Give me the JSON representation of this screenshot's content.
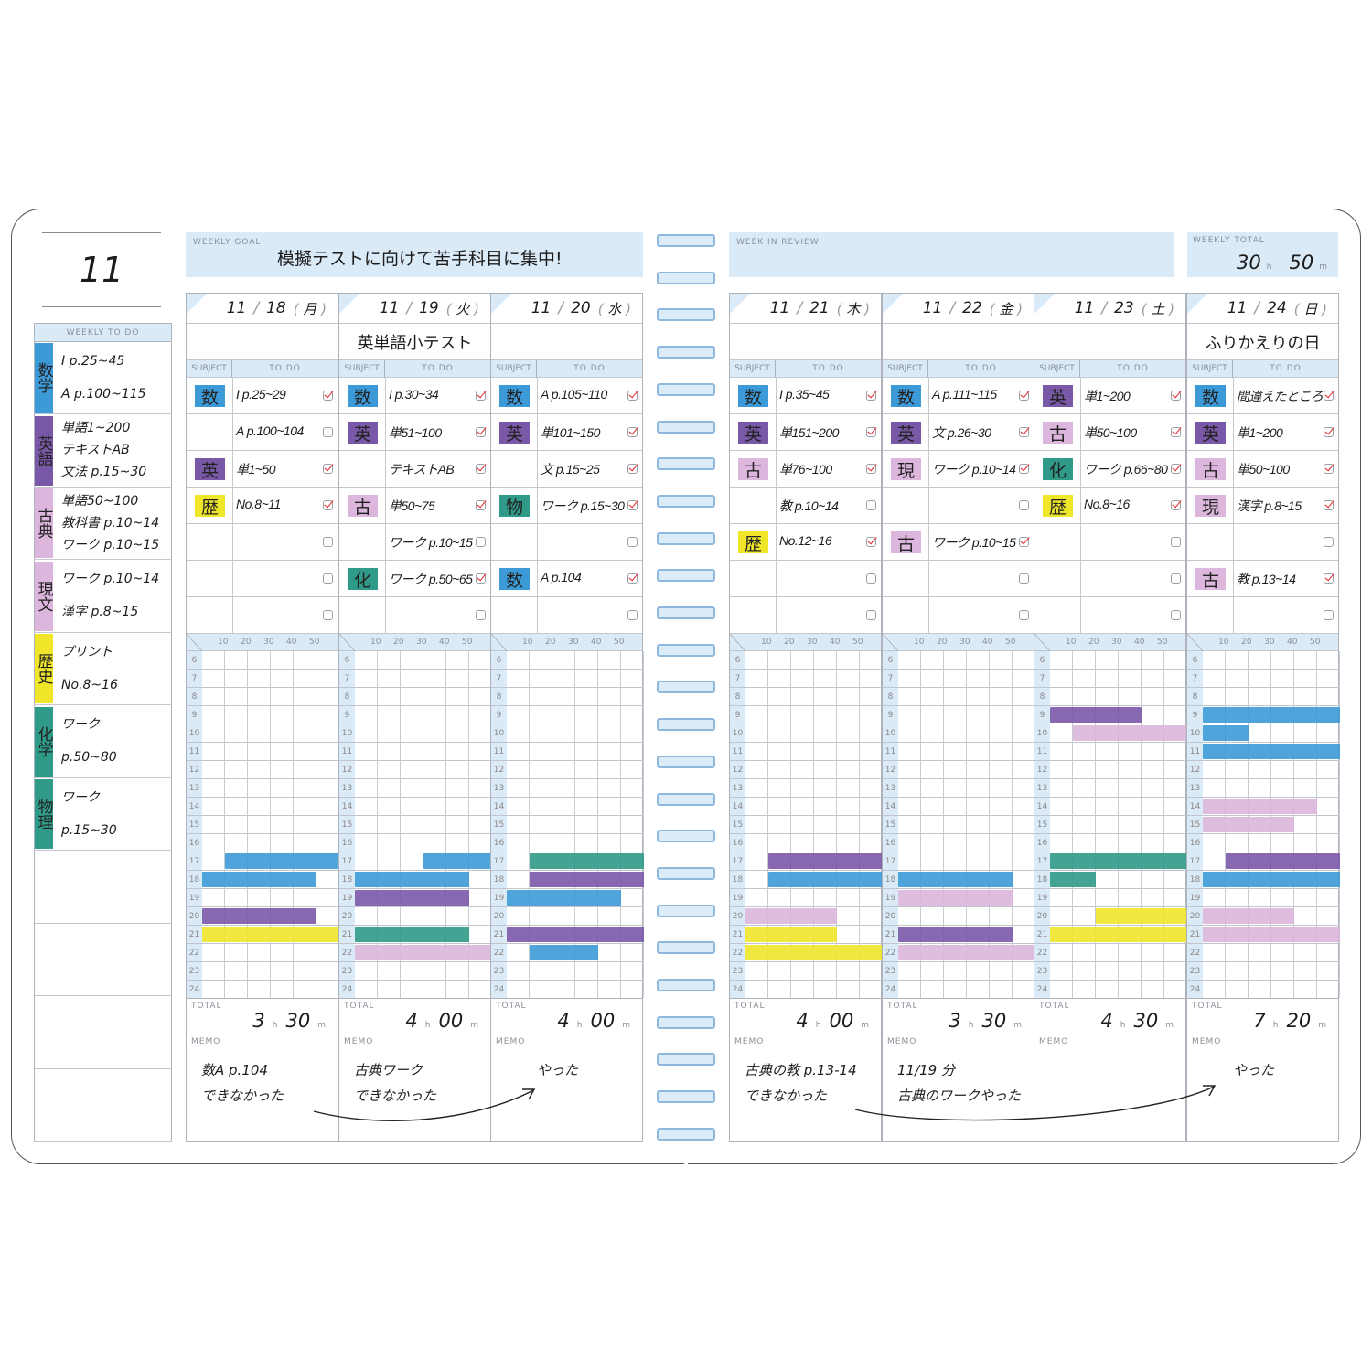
{
  "colors": {
    "blue": "#3d9ad8",
    "purple": "#7a58a8",
    "pink": "#dcb6dc",
    "yellow": "#efe62a",
    "teal": "#2f9a88",
    "header": "#dbeaf7",
    "check": "#e0202a"
  },
  "subject_colors": {
    "数": "blue",
    "英": "purple",
    "古": "pink",
    "現": "pink",
    "歴": "yellow",
    "化": "teal",
    "物": "teal"
  },
  "month": "11",
  "weekly_todo": {
    "label": "WEEKLY TO DO",
    "subjects": [
      {
        "name": "数学",
        "color": "blue",
        "items": [
          "I p.25~45",
          "A p.100~115"
        ]
      },
      {
        "name": "英語",
        "color": "purple",
        "items": [
          "単語1~200",
          "テキストAB",
          "文法 p.15~30"
        ]
      },
      {
        "name": "古典",
        "color": "pink",
        "items": [
          "単語50~100",
          "教科書 p.10~14",
          "ワーク p.10~15"
        ]
      },
      {
        "name": "現文",
        "color": "pink",
        "items": [
          "ワーク p.10~14",
          "漢字 p.8~15"
        ]
      },
      {
        "name": "歴史",
        "color": "yellow",
        "items": [
          "プリント",
          "No.8~16"
        ]
      },
      {
        "name": "化学",
        "color": "teal",
        "items": [
          "ワーク",
          "p.50~80"
        ]
      },
      {
        "name": "物理",
        "color": "teal",
        "items": [
          "ワーク",
          "p.15~30"
        ]
      }
    ]
  },
  "weekly_goal": {
    "label": "WEEKLY GOAL",
    "text": "模擬テストに向けて苦手科目に集中!"
  },
  "week_in_review": {
    "label": "WEEK IN REVIEW",
    "text": ""
  },
  "weekly_total": {
    "label": "WEEKLY TOTAL",
    "hours": "30",
    "minutes": "50",
    "h": "h",
    "m": "m"
  },
  "labels": {
    "subject": "SUBJECT",
    "todo": "TO DO",
    "total": "TOTAL",
    "memo": "MEMO",
    "h": "h",
    "m": "m",
    "minute_ticks": [
      "10",
      "20",
      "30",
      "40",
      "50"
    ],
    "hours": [
      "6",
      "7",
      "8",
      "9",
      "10",
      "11",
      "12",
      "13",
      "14",
      "15",
      "16",
      "17",
      "18",
      "19",
      "20",
      "21",
      "22",
      "23",
      "24"
    ]
  },
  "days": [
    {
      "month": "11",
      "day": "18",
      "weekday": "月",
      "event": "",
      "tasks": [
        [
          "数",
          "I p.25~29",
          true
        ],
        [
          "",
          "A p.100~104",
          false
        ],
        [
          "英",
          "単1~50",
          true
        ],
        [
          "歴",
          "No.8~11",
          true
        ],
        [
          "",
          "",
          false
        ],
        [
          "",
          "",
          false
        ],
        [
          "",
          "",
          false
        ]
      ],
      "bars": [
        [
          17,
          10,
          60,
          "blue"
        ],
        [
          18,
          0,
          50,
          "blue"
        ],
        [
          20,
          0,
          50,
          "purple"
        ],
        [
          21,
          0,
          60,
          "yellow"
        ]
      ],
      "total_h": "3",
      "total_m": "30",
      "memo": [
        "数A p.104",
        "できなかった"
      ]
    },
    {
      "month": "11",
      "day": "19",
      "weekday": "火",
      "event": "英単語小テスト",
      "tasks": [
        [
          "数",
          "I p.30~34",
          true
        ],
        [
          "英",
          "単51~100",
          true
        ],
        [
          "",
          "テキストAB",
          true
        ],
        [
          "古",
          "単50~75",
          true
        ],
        [
          "",
          "ワーク p.10~15",
          false
        ],
        [
          "化",
          "ワーク p.50~65",
          true
        ],
        [
          "",
          "",
          false
        ]
      ],
      "bars": [
        [
          17,
          30,
          60,
          "blue"
        ],
        [
          18,
          0,
          50,
          "blue"
        ],
        [
          19,
          0,
          50,
          "purple"
        ],
        [
          21,
          0,
          50,
          "teal"
        ],
        [
          22,
          0,
          60,
          "pink"
        ]
      ],
      "total_h": "4",
      "total_m": "00",
      "memo": [
        "古典ワーク",
        "できなかった"
      ]
    },
    {
      "month": "11",
      "day": "20",
      "weekday": "水",
      "event": "",
      "tasks": [
        [
          "数",
          "A p.105~110",
          true
        ],
        [
          "英",
          "単101~150",
          true
        ],
        [
          "",
          "文 p.15~25",
          true
        ],
        [
          "物",
          "ワーク p.15~30",
          true
        ],
        [
          "",
          "",
          false
        ],
        [
          "数",
          "A p.104",
          true
        ],
        [
          "",
          "",
          false
        ]
      ],
      "bars": [
        [
          17,
          10,
          60,
          "teal"
        ],
        [
          18,
          10,
          60,
          "purple"
        ],
        [
          19,
          0,
          50,
          "blue"
        ],
        [
          21,
          0,
          60,
          "purple"
        ],
        [
          22,
          10,
          40,
          "blue"
        ]
      ],
      "total_h": "4",
      "total_m": "00",
      "memo": [
        "やった"
      ]
    },
    {
      "month": "11",
      "day": "21",
      "weekday": "木",
      "event": "",
      "tasks": [
        [
          "数",
          "I p.35~45",
          true
        ],
        [
          "英",
          "単151~200",
          true
        ],
        [
          "古",
          "単76~100",
          true
        ],
        [
          "",
          "教 p.10~14",
          false
        ],
        [
          "歴",
          "No.12~16",
          true
        ],
        [
          "",
          "",
          false
        ],
        [
          "",
          "",
          false
        ]
      ],
      "bars": [
        [
          17,
          10,
          60,
          "purple"
        ],
        [
          18,
          10,
          60,
          "blue"
        ],
        [
          20,
          0,
          40,
          "pink"
        ],
        [
          21,
          0,
          40,
          "yellow"
        ],
        [
          22,
          0,
          60,
          "yellow"
        ]
      ],
      "total_h": "4",
      "total_m": "00",
      "memo": [
        "古典の教 p.13-14",
        "できなかった"
      ]
    },
    {
      "month": "11",
      "day": "22",
      "weekday": "金",
      "event": "",
      "tasks": [
        [
          "数",
          "A p.111~115",
          true
        ],
        [
          "英",
          "文 p.26~30",
          true
        ],
        [
          "現",
          "ワーク p.10~14",
          true
        ],
        [
          "",
          "",
          false
        ],
        [
          "古",
          "ワーク p.10~15",
          true
        ],
        [
          "",
          "",
          false
        ],
        [
          "",
          "",
          false
        ]
      ],
      "bars": [
        [
          18,
          0,
          50,
          "blue"
        ],
        [
          19,
          0,
          50,
          "pink"
        ],
        [
          21,
          0,
          50,
          "purple"
        ],
        [
          22,
          0,
          60,
          "pink"
        ]
      ],
      "total_h": "3",
      "total_m": "30",
      "memo": [
        "11/19 分",
        "古典のワークやった"
      ]
    },
    {
      "month": "11",
      "day": "23",
      "weekday": "土",
      "event": "",
      "tasks": [
        [
          "英",
          "単1~200",
          true
        ],
        [
          "古",
          "単50~100",
          true
        ],
        [
          "化",
          "ワーク p.66~80",
          true
        ],
        [
          "歴",
          "No.8~16",
          true
        ],
        [
          "",
          "",
          false
        ],
        [
          "",
          "",
          false
        ],
        [
          "",
          "",
          false
        ]
      ],
      "bars": [
        [
          9,
          0,
          40,
          "purple"
        ],
        [
          10,
          10,
          60,
          "pink"
        ],
        [
          17,
          0,
          60,
          "teal"
        ],
        [
          18,
          0,
          20,
          "teal"
        ],
        [
          20,
          20,
          60,
          "yellow"
        ],
        [
          21,
          0,
          60,
          "yellow"
        ]
      ],
      "total_h": "4",
      "total_m": "30",
      "memo": []
    },
    {
      "month": "11",
      "day": "24",
      "weekday": "日",
      "event": "ふりかえりの日",
      "tasks": [
        [
          "数",
          "間違えたところ",
          true
        ],
        [
          "英",
          "単1~200",
          true
        ],
        [
          "古",
          "単50~100",
          true
        ],
        [
          "現",
          "漢字 p.8~15",
          true
        ],
        [
          "",
          "",
          false
        ],
        [
          "古",
          "教 p.13~14",
          true
        ],
        [
          "",
          "",
          false
        ]
      ],
      "bars": [
        [
          9,
          0,
          60,
          "blue"
        ],
        [
          10,
          0,
          20,
          "blue"
        ],
        [
          11,
          0,
          60,
          "blue"
        ],
        [
          14,
          0,
          50,
          "pink"
        ],
        [
          15,
          0,
          40,
          "pink"
        ],
        [
          17,
          10,
          60,
          "purple"
        ],
        [
          18,
          0,
          60,
          "blue"
        ],
        [
          20,
          0,
          40,
          "pink"
        ],
        [
          21,
          0,
          60,
          "pink"
        ]
      ],
      "total_h": "7",
      "total_m": "20",
      "memo": [
        "やった"
      ]
    }
  ]
}
